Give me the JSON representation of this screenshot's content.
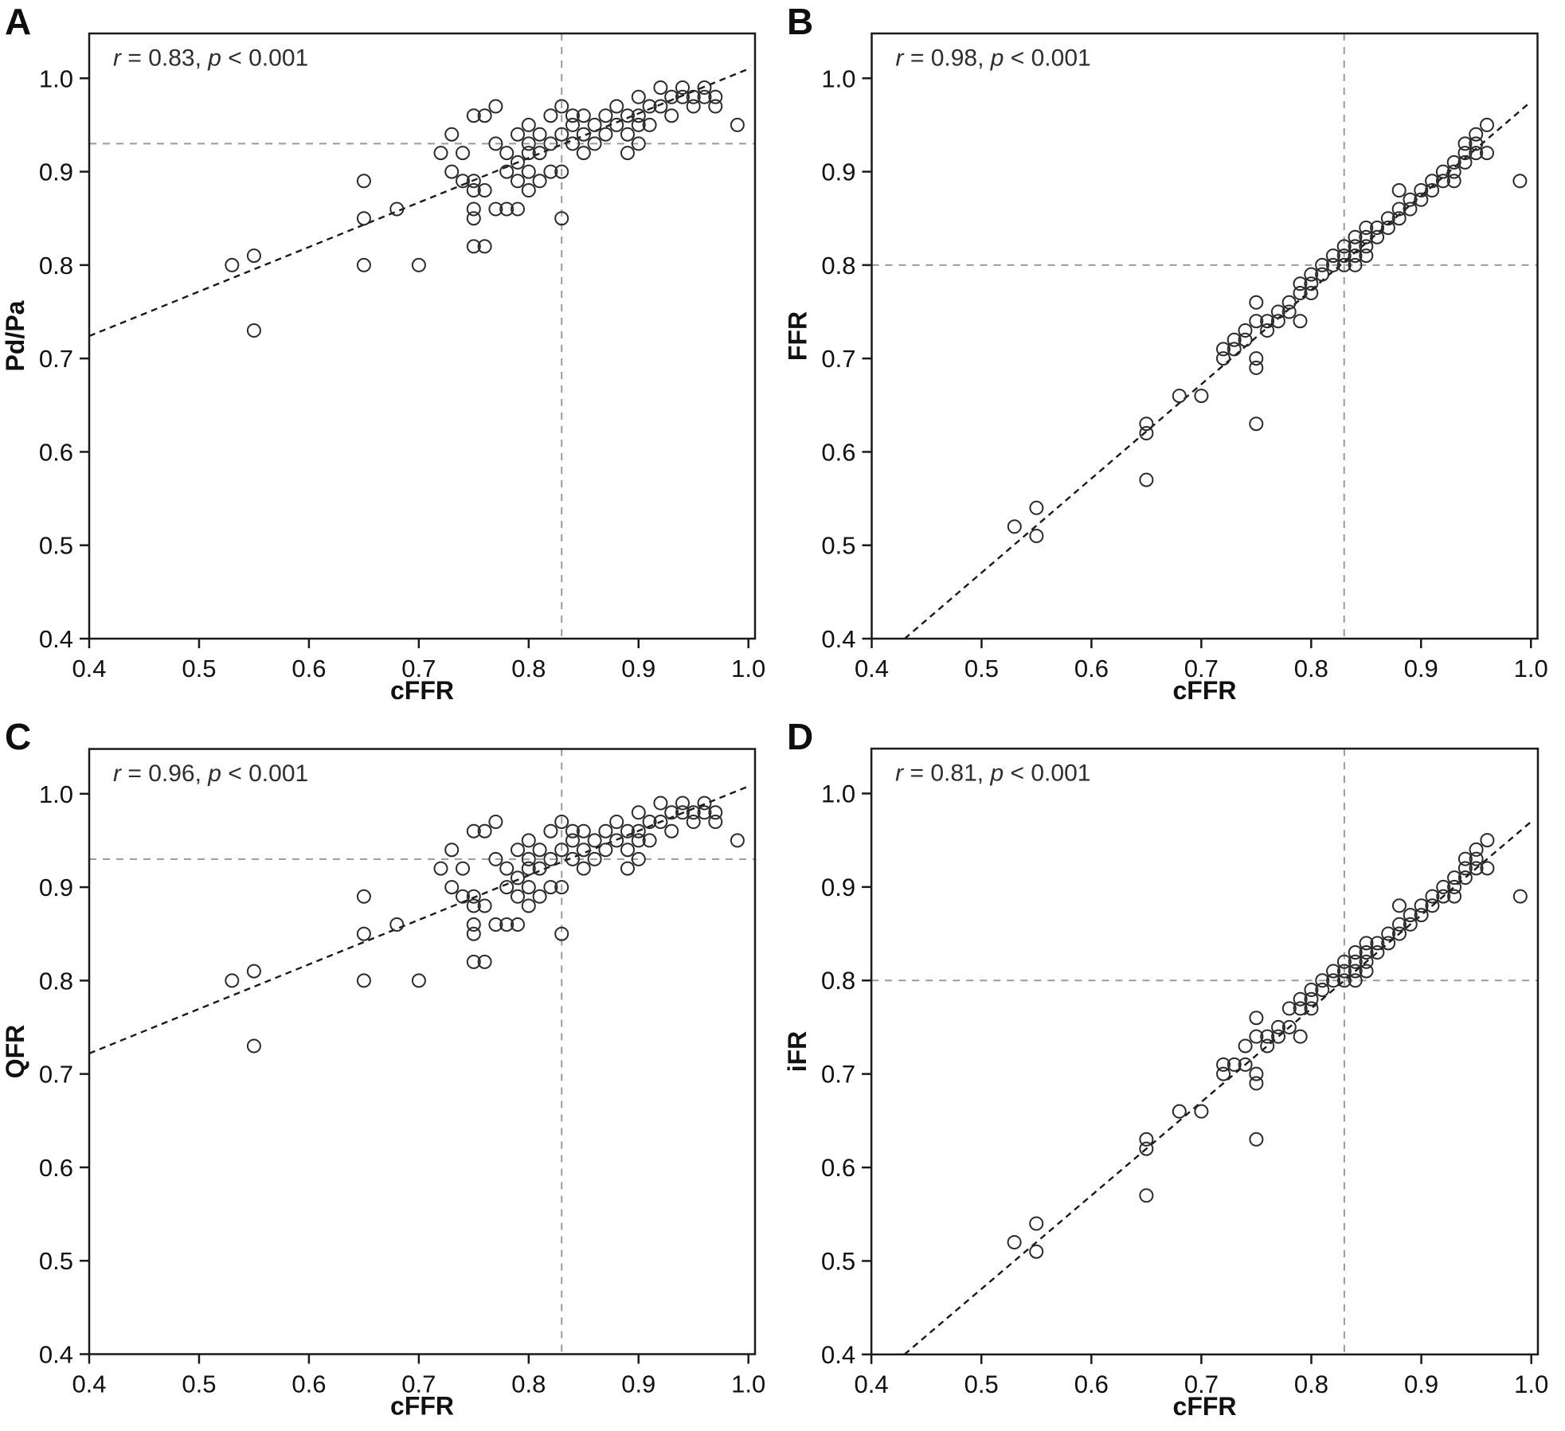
{
  "colors": {
    "marker": "#2b2b2b",
    "fit_line": "#1a1a1a",
    "ref_line": "#9b9b9b",
    "axis": "#1a1a1a",
    "text": "#111111",
    "annotation": "#2e2e2e",
    "background": "#ffffff"
  },
  "chart_data": [
    {
      "panel_label": "A",
      "type": "scatter",
      "xlabel": "cFFR",
      "ylabel": "Pd/Pa",
      "stats": {
        "r_sym": "r",
        "r_text": " = 0.83, ",
        "p_sym": "p",
        "p_text": " < 0.001"
      },
      "xlim": [
        0.4,
        1.0
      ],
      "ylim": [
        0.4,
        1.0
      ],
      "xticks": [
        0.4,
        0.5,
        0.6,
        0.7,
        0.8,
        0.9,
        1.0
      ],
      "yticks": [
        0.4,
        0.5,
        0.6,
        0.7,
        0.8,
        0.9,
        1.0
      ],
      "ref_line_h": 0.93,
      "ref_line_v": 0.83,
      "fit_line": {
        "x1": 0.4,
        "y1": 0.724,
        "x2": 1.0,
        "y2": 1.01
      },
      "marker": "open-circle",
      "grid": false,
      "legend": "none",
      "points": [
        [
          0.53,
          0.8
        ],
        [
          0.55,
          0.81
        ],
        [
          0.55,
          0.73
        ],
        [
          0.65,
          0.89
        ],
        [
          0.65,
          0.85
        ],
        [
          0.65,
          0.8
        ],
        [
          0.68,
          0.86
        ],
        [
          0.7,
          0.8
        ],
        [
          0.72,
          0.92
        ],
        [
          0.73,
          0.94
        ],
        [
          0.73,
          0.9
        ],
        [
          0.74,
          0.92
        ],
        [
          0.74,
          0.89
        ],
        [
          0.75,
          0.96
        ],
        [
          0.75,
          0.89
        ],
        [
          0.75,
          0.88
        ],
        [
          0.75,
          0.86
        ],
        [
          0.75,
          0.85
        ],
        [
          0.75,
          0.82
        ],
        [
          0.76,
          0.96
        ],
        [
          0.76,
          0.88
        ],
        [
          0.76,
          0.82
        ],
        [
          0.77,
          0.97
        ],
        [
          0.77,
          0.93
        ],
        [
          0.77,
          0.86
        ],
        [
          0.78,
          0.92
        ],
        [
          0.78,
          0.9
        ],
        [
          0.78,
          0.86
        ],
        [
          0.79,
          0.94
        ],
        [
          0.79,
          0.91
        ],
        [
          0.79,
          0.89
        ],
        [
          0.79,
          0.86
        ],
        [
          0.8,
          0.95
        ],
        [
          0.8,
          0.93
        ],
        [
          0.8,
          0.92
        ],
        [
          0.8,
          0.9
        ],
        [
          0.8,
          0.88
        ],
        [
          0.81,
          0.94
        ],
        [
          0.81,
          0.92
        ],
        [
          0.81,
          0.89
        ],
        [
          0.82,
          0.96
        ],
        [
          0.82,
          0.93
        ],
        [
          0.82,
          0.9
        ],
        [
          0.83,
          0.97
        ],
        [
          0.83,
          0.94
        ],
        [
          0.83,
          0.9
        ],
        [
          0.83,
          0.85
        ],
        [
          0.84,
          0.96
        ],
        [
          0.84,
          0.95
        ],
        [
          0.84,
          0.93
        ],
        [
          0.85,
          0.96
        ],
        [
          0.85,
          0.94
        ],
        [
          0.85,
          0.92
        ],
        [
          0.86,
          0.95
        ],
        [
          0.86,
          0.93
        ],
        [
          0.87,
          0.96
        ],
        [
          0.87,
          0.94
        ],
        [
          0.88,
          0.97
        ],
        [
          0.88,
          0.95
        ],
        [
          0.89,
          0.96
        ],
        [
          0.89,
          0.94
        ],
        [
          0.89,
          0.92
        ],
        [
          0.9,
          0.98
        ],
        [
          0.9,
          0.96
        ],
        [
          0.9,
          0.95
        ],
        [
          0.9,
          0.93
        ],
        [
          0.91,
          0.97
        ],
        [
          0.91,
          0.95
        ],
        [
          0.92,
          0.99
        ],
        [
          0.92,
          0.97
        ],
        [
          0.93,
          0.98
        ],
        [
          0.93,
          0.96
        ],
        [
          0.94,
          0.99
        ],
        [
          0.94,
          0.98
        ],
        [
          0.95,
          0.98
        ],
        [
          0.95,
          0.97
        ],
        [
          0.96,
          0.99
        ],
        [
          0.96,
          0.98
        ],
        [
          0.97,
          0.98
        ],
        [
          0.97,
          0.97
        ],
        [
          0.99,
          0.95
        ]
      ]
    },
    {
      "panel_label": "B",
      "type": "scatter",
      "xlabel": "cFFR",
      "ylabel": "FFR",
      "stats": {
        "r_sym": "r",
        "r_text": " = 0.98, ",
        "p_sym": "p",
        "p_text": " < 0.001"
      },
      "xlim": [
        0.4,
        1.0
      ],
      "ylim": [
        0.4,
        1.0
      ],
      "xticks": [
        0.4,
        0.5,
        0.6,
        0.7,
        0.8,
        0.9,
        1.0
      ],
      "yticks": [
        0.4,
        0.5,
        0.6,
        0.7,
        0.8,
        0.9,
        1.0
      ],
      "ref_line_h": 0.8,
      "ref_line_v": 0.83,
      "fit_line": {
        "x1": 0.43,
        "y1": 0.4,
        "x2": 1.0,
        "y2": 0.975
      },
      "marker": "open-circle",
      "grid": false,
      "legend": "none",
      "points": [
        [
          0.53,
          0.52
        ],
        [
          0.55,
          0.54
        ],
        [
          0.55,
          0.51
        ],
        [
          0.65,
          0.63
        ],
        [
          0.65,
          0.62
        ],
        [
          0.65,
          0.57
        ],
        [
          0.68,
          0.66
        ],
        [
          0.7,
          0.66
        ],
        [
          0.72,
          0.71
        ],
        [
          0.72,
          0.7
        ],
        [
          0.73,
          0.72
        ],
        [
          0.73,
          0.71
        ],
        [
          0.74,
          0.73
        ],
        [
          0.74,
          0.72
        ],
        [
          0.75,
          0.76
        ],
        [
          0.75,
          0.74
        ],
        [
          0.75,
          0.7
        ],
        [
          0.75,
          0.69
        ],
        [
          0.75,
          0.63
        ],
        [
          0.76,
          0.74
        ],
        [
          0.76,
          0.73
        ],
        [
          0.77,
          0.75
        ],
        [
          0.77,
          0.74
        ],
        [
          0.78,
          0.76
        ],
        [
          0.78,
          0.75
        ],
        [
          0.79,
          0.78
        ],
        [
          0.79,
          0.77
        ],
        [
          0.79,
          0.74
        ],
        [
          0.8,
          0.79
        ],
        [
          0.8,
          0.78
        ],
        [
          0.8,
          0.77
        ],
        [
          0.81,
          0.8
        ],
        [
          0.81,
          0.79
        ],
        [
          0.82,
          0.81
        ],
        [
          0.82,
          0.8
        ],
        [
          0.83,
          0.82
        ],
        [
          0.83,
          0.81
        ],
        [
          0.83,
          0.8
        ],
        [
          0.84,
          0.83
        ],
        [
          0.84,
          0.82
        ],
        [
          0.84,
          0.81
        ],
        [
          0.84,
          0.8
        ],
        [
          0.85,
          0.84
        ],
        [
          0.85,
          0.83
        ],
        [
          0.85,
          0.82
        ],
        [
          0.85,
          0.81
        ],
        [
          0.86,
          0.84
        ],
        [
          0.86,
          0.83
        ],
        [
          0.87,
          0.85
        ],
        [
          0.87,
          0.84
        ],
        [
          0.88,
          0.88
        ],
        [
          0.88,
          0.86
        ],
        [
          0.88,
          0.85
        ],
        [
          0.89,
          0.87
        ],
        [
          0.89,
          0.86
        ],
        [
          0.9,
          0.88
        ],
        [
          0.9,
          0.87
        ],
        [
          0.91,
          0.89
        ],
        [
          0.91,
          0.88
        ],
        [
          0.92,
          0.9
        ],
        [
          0.92,
          0.89
        ],
        [
          0.93,
          0.91
        ],
        [
          0.93,
          0.9
        ],
        [
          0.93,
          0.89
        ],
        [
          0.94,
          0.93
        ],
        [
          0.94,
          0.92
        ],
        [
          0.94,
          0.91
        ],
        [
          0.95,
          0.94
        ],
        [
          0.95,
          0.93
        ],
        [
          0.95,
          0.92
        ],
        [
          0.96,
          0.95
        ],
        [
          0.96,
          0.92
        ],
        [
          0.99,
          0.89
        ]
      ]
    },
    {
      "panel_label": "C",
      "type": "scatter",
      "xlabel": "cFFR",
      "ylabel": "QFR",
      "stats": {
        "r_sym": "r",
        "r_text": " = 0.96, ",
        "p_sym": "p",
        "p_text": " < 0.001"
      },
      "xlim": [
        0.4,
        1.0
      ],
      "ylim": [
        0.4,
        1.0
      ],
      "xticks": [
        0.4,
        0.5,
        0.6,
        0.7,
        0.8,
        0.9,
        1.0
      ],
      "yticks": [
        0.4,
        0.5,
        0.6,
        0.7,
        0.8,
        0.9,
        1.0
      ],
      "ref_line_h": 0.93,
      "ref_line_v": 0.83,
      "fit_line": {
        "x1": 0.4,
        "y1": 0.722,
        "x2": 1.0,
        "y2": 1.008
      },
      "marker": "open-circle",
      "grid": false,
      "legend": "none",
      "points": [
        [
          0.53,
          0.8
        ],
        [
          0.55,
          0.81
        ],
        [
          0.55,
          0.73
        ],
        [
          0.65,
          0.89
        ],
        [
          0.65,
          0.85
        ],
        [
          0.65,
          0.8
        ],
        [
          0.68,
          0.86
        ],
        [
          0.7,
          0.8
        ],
        [
          0.72,
          0.92
        ],
        [
          0.73,
          0.94
        ],
        [
          0.73,
          0.9
        ],
        [
          0.74,
          0.92
        ],
        [
          0.74,
          0.89
        ],
        [
          0.75,
          0.96
        ],
        [
          0.75,
          0.89
        ],
        [
          0.75,
          0.88
        ],
        [
          0.75,
          0.86
        ],
        [
          0.75,
          0.85
        ],
        [
          0.75,
          0.82
        ],
        [
          0.76,
          0.96
        ],
        [
          0.76,
          0.88
        ],
        [
          0.76,
          0.82
        ],
        [
          0.77,
          0.97
        ],
        [
          0.77,
          0.93
        ],
        [
          0.77,
          0.86
        ],
        [
          0.78,
          0.92
        ],
        [
          0.78,
          0.9
        ],
        [
          0.78,
          0.86
        ],
        [
          0.79,
          0.94
        ],
        [
          0.79,
          0.91
        ],
        [
          0.79,
          0.89
        ],
        [
          0.79,
          0.86
        ],
        [
          0.8,
          0.95
        ],
        [
          0.8,
          0.93
        ],
        [
          0.8,
          0.92
        ],
        [
          0.8,
          0.9
        ],
        [
          0.8,
          0.88
        ],
        [
          0.81,
          0.94
        ],
        [
          0.81,
          0.92
        ],
        [
          0.81,
          0.89
        ],
        [
          0.82,
          0.96
        ],
        [
          0.82,
          0.93
        ],
        [
          0.82,
          0.9
        ],
        [
          0.83,
          0.97
        ],
        [
          0.83,
          0.94
        ],
        [
          0.83,
          0.9
        ],
        [
          0.83,
          0.85
        ],
        [
          0.84,
          0.96
        ],
        [
          0.84,
          0.95
        ],
        [
          0.84,
          0.93
        ],
        [
          0.85,
          0.96
        ],
        [
          0.85,
          0.94
        ],
        [
          0.85,
          0.92
        ],
        [
          0.86,
          0.95
        ],
        [
          0.86,
          0.93
        ],
        [
          0.87,
          0.96
        ],
        [
          0.87,
          0.94
        ],
        [
          0.88,
          0.97
        ],
        [
          0.88,
          0.95
        ],
        [
          0.89,
          0.96
        ],
        [
          0.89,
          0.94
        ],
        [
          0.89,
          0.92
        ],
        [
          0.9,
          0.98
        ],
        [
          0.9,
          0.96
        ],
        [
          0.9,
          0.95
        ],
        [
          0.9,
          0.93
        ],
        [
          0.91,
          0.97
        ],
        [
          0.91,
          0.95
        ],
        [
          0.92,
          0.99
        ],
        [
          0.92,
          0.97
        ],
        [
          0.93,
          0.98
        ],
        [
          0.93,
          0.96
        ],
        [
          0.94,
          0.99
        ],
        [
          0.94,
          0.98
        ],
        [
          0.95,
          0.98
        ],
        [
          0.95,
          0.97
        ],
        [
          0.96,
          0.99
        ],
        [
          0.96,
          0.98
        ],
        [
          0.97,
          0.98
        ],
        [
          0.97,
          0.97
        ],
        [
          0.99,
          0.95
        ]
      ]
    },
    {
      "panel_label": "D",
      "type": "scatter",
      "xlabel": "cFFR",
      "ylabel": "iFR",
      "stats": {
        "r_sym": "r",
        "r_text": " = 0.81, ",
        "p_sym": "p",
        "p_text": " < 0.001"
      },
      "xlim": [
        0.4,
        1.0
      ],
      "ylim": [
        0.4,
        1.0
      ],
      "xticks": [
        0.4,
        0.5,
        0.6,
        0.7,
        0.8,
        0.9,
        1.0
      ],
      "yticks": [
        0.4,
        0.5,
        0.6,
        0.7,
        0.8,
        0.9,
        1.0
      ],
      "ref_line_h": 0.8,
      "ref_line_v": 0.83,
      "fit_line": {
        "x1": 0.43,
        "y1": 0.4,
        "x2": 1.0,
        "y2": 0.97
      },
      "marker": "open-circle",
      "grid": false,
      "legend": "none",
      "points": [
        [
          0.53,
          0.52
        ],
        [
          0.55,
          0.54
        ],
        [
          0.55,
          0.51
        ],
        [
          0.65,
          0.63
        ],
        [
          0.65,
          0.62
        ],
        [
          0.65,
          0.57
        ],
        [
          0.68,
          0.66
        ],
        [
          0.7,
          0.66
        ],
        [
          0.72,
          0.71
        ],
        [
          0.72,
          0.7
        ],
        [
          0.73,
          0.71
        ],
        [
          0.74,
          0.73
        ],
        [
          0.74,
          0.71
        ],
        [
          0.75,
          0.76
        ],
        [
          0.75,
          0.74
        ],
        [
          0.75,
          0.7
        ],
        [
          0.75,
          0.69
        ],
        [
          0.75,
          0.63
        ],
        [
          0.76,
          0.74
        ],
        [
          0.76,
          0.73
        ],
        [
          0.77,
          0.75
        ],
        [
          0.77,
          0.74
        ],
        [
          0.78,
          0.77
        ],
        [
          0.78,
          0.75
        ],
        [
          0.79,
          0.78
        ],
        [
          0.79,
          0.77
        ],
        [
          0.79,
          0.74
        ],
        [
          0.8,
          0.79
        ],
        [
          0.8,
          0.78
        ],
        [
          0.8,
          0.77
        ],
        [
          0.81,
          0.8
        ],
        [
          0.81,
          0.79
        ],
        [
          0.82,
          0.81
        ],
        [
          0.82,
          0.8
        ],
        [
          0.83,
          0.82
        ],
        [
          0.83,
          0.81
        ],
        [
          0.83,
          0.8
        ],
        [
          0.84,
          0.83
        ],
        [
          0.84,
          0.82
        ],
        [
          0.84,
          0.81
        ],
        [
          0.84,
          0.8
        ],
        [
          0.85,
          0.84
        ],
        [
          0.85,
          0.83
        ],
        [
          0.85,
          0.82
        ],
        [
          0.85,
          0.81
        ],
        [
          0.86,
          0.84
        ],
        [
          0.86,
          0.83
        ],
        [
          0.87,
          0.85
        ],
        [
          0.87,
          0.84
        ],
        [
          0.88,
          0.88
        ],
        [
          0.88,
          0.86
        ],
        [
          0.88,
          0.85
        ],
        [
          0.89,
          0.87
        ],
        [
          0.89,
          0.86
        ],
        [
          0.9,
          0.88
        ],
        [
          0.9,
          0.87
        ],
        [
          0.91,
          0.89
        ],
        [
          0.91,
          0.88
        ],
        [
          0.92,
          0.9
        ],
        [
          0.92,
          0.89
        ],
        [
          0.93,
          0.91
        ],
        [
          0.93,
          0.9
        ],
        [
          0.93,
          0.89
        ],
        [
          0.94,
          0.93
        ],
        [
          0.94,
          0.92
        ],
        [
          0.94,
          0.91
        ],
        [
          0.95,
          0.94
        ],
        [
          0.95,
          0.93
        ],
        [
          0.95,
          0.92
        ],
        [
          0.96,
          0.95
        ],
        [
          0.96,
          0.92
        ],
        [
          0.99,
          0.89
        ]
      ]
    }
  ]
}
